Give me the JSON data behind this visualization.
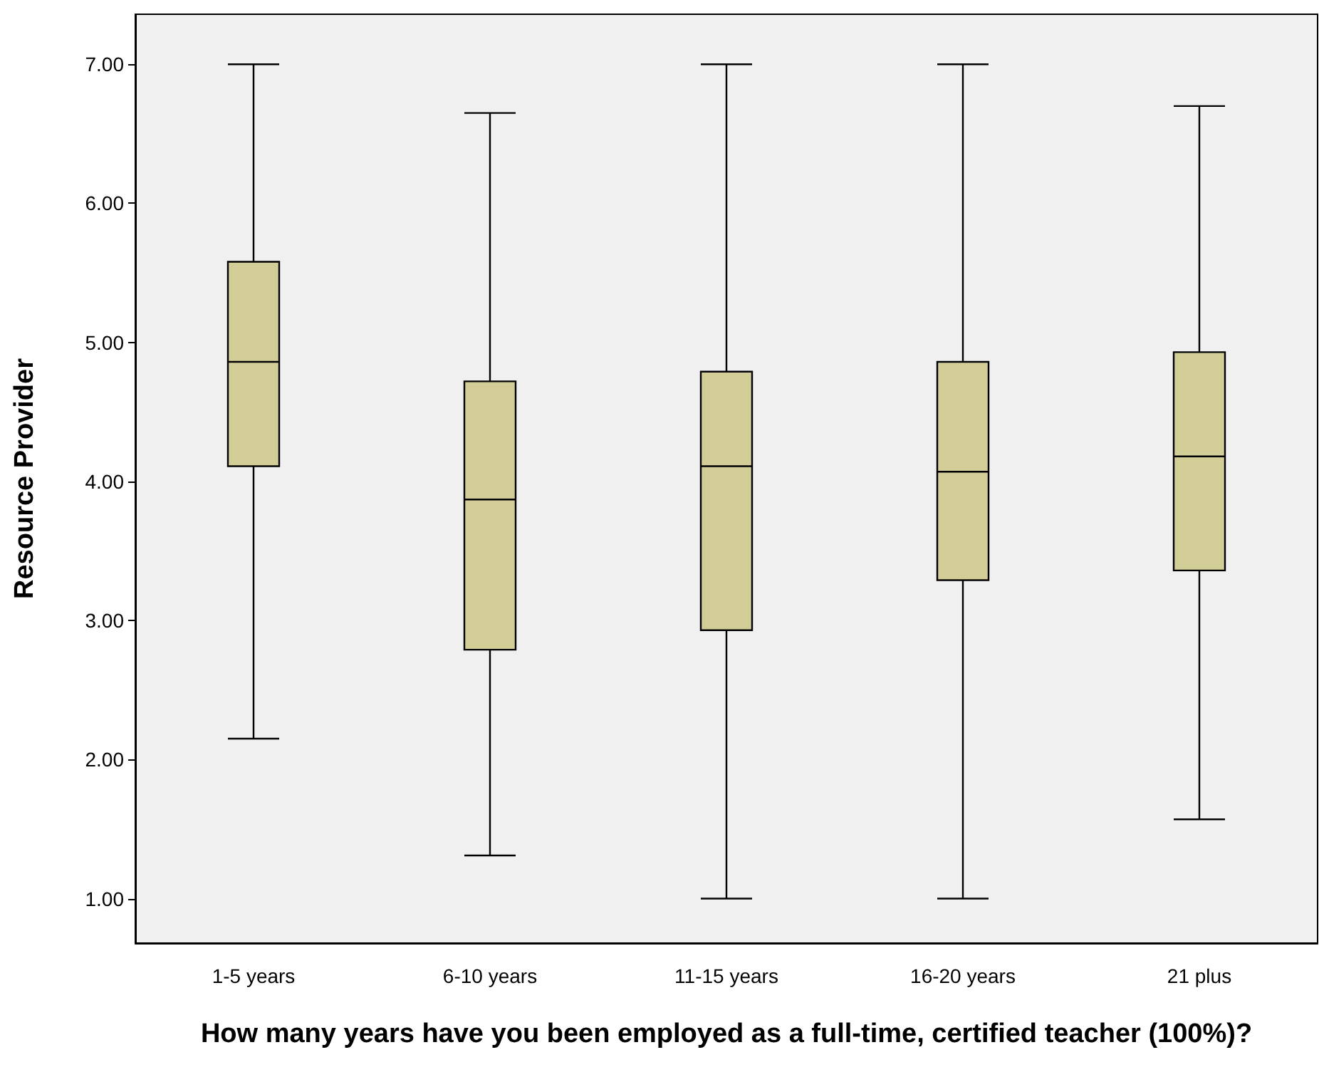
{
  "chart_data": {
    "type": "box",
    "xlabel": "How many years have you been employed as a full-time, certified teacher (100%)?",
    "ylabel": "Resource Provider",
    "categories": [
      "1-5 years",
      "6-10 years",
      "11-15 years",
      "16-20 years",
      "21 plus"
    ],
    "series": [
      {
        "color": "#d3ce97",
        "boxes": [
          {
            "low": 2.15,
            "q1": 4.11,
            "median": 4.86,
            "q3": 5.58,
            "high": 7.0
          },
          {
            "low": 1.31,
            "q1": 2.79,
            "median": 3.87,
            "q3": 4.72,
            "high": 6.65
          },
          {
            "low": 1.0,
            "q1": 2.93,
            "median": 4.11,
            "q3": 4.79,
            "high": 7.0
          },
          {
            "low": 1.0,
            "q1": 3.29,
            "median": 4.07,
            "q3": 4.86,
            "high": 7.0
          },
          {
            "low": 1.57,
            "q1": 3.36,
            "median": 4.18,
            "q3": 4.93,
            "high": 6.7
          }
        ]
      }
    ],
    "ylim": [
      0.68,
      7.36
    ],
    "yticks": [
      {
        "value": 1,
        "label": "1.00"
      },
      {
        "value": 2,
        "label": "2.00"
      },
      {
        "value": 3,
        "label": "3.00"
      },
      {
        "value": 4,
        "label": "4.00"
      },
      {
        "value": 5,
        "label": "5.00"
      },
      {
        "value": 6,
        "label": "6.00"
      },
      {
        "value": 7,
        "label": "7.00"
      }
    ],
    "grid": false
  }
}
